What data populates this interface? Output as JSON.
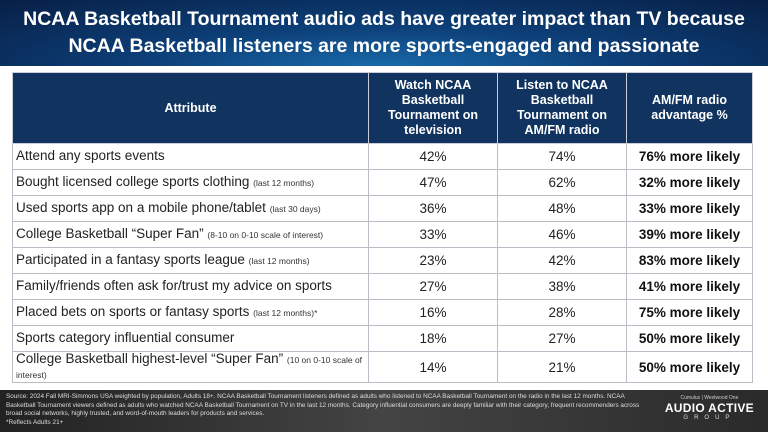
{
  "title": {
    "line1": "NCAA Basketball Tournament audio ads have greater impact than TV because",
    "line2": "NCAA Basketball listeners are more sports-engaged and passionate"
  },
  "table": {
    "headers": [
      "Attribute",
      "Watch NCAA Basketball Tournament on television",
      "Listen to NCAA Basketball Tournament on AM/FM radio",
      "AM/FM radio advantage %"
    ],
    "rows": [
      {
        "attribute": "Attend any sports events",
        "note": "",
        "tv": "42%",
        "radio": "74%",
        "advantage": "76% more likely"
      },
      {
        "attribute": "Bought licensed college sports clothing",
        "note": "(last 12 months)",
        "tv": "47%",
        "radio": "62%",
        "advantage": "32% more likely"
      },
      {
        "attribute": "Used sports app on a mobile phone/tablet",
        "note": "(last 30 days)",
        "tv": "36%",
        "radio": "48%",
        "advantage": "33% more likely"
      },
      {
        "attribute": "College Basketball “Super Fan”",
        "note": "(8-10 on 0-10 scale of interest)",
        "tv": "33%",
        "radio": "46%",
        "advantage": "39% more likely"
      },
      {
        "attribute": "Participated in a fantasy sports league",
        "note": "(last 12 months)",
        "tv": "23%",
        "radio": "42%",
        "advantage": "83% more likely"
      },
      {
        "attribute": "Family/friends often ask for/trust my advice on sports",
        "note": "",
        "tv": "27%",
        "radio": "38%",
        "advantage": "41% more likely"
      },
      {
        "attribute": "Placed bets on sports or fantasy sports",
        "note": "(last 12 months)*",
        "tv": "16%",
        "radio": "28%",
        "advantage": "75% more likely"
      },
      {
        "attribute": "Sports category influential consumer",
        "note": "",
        "tv": "18%",
        "radio": "27%",
        "advantage": "50% more likely"
      },
      {
        "attribute": "College Basketball highest-level “Super Fan”",
        "note": "(10 on 0-10 scale of interest)",
        "tv": "14%",
        "radio": "21%",
        "advantage": "50% more likely"
      }
    ]
  },
  "footer": {
    "source": "Source: 2024 Fall MRI-Simmons USA weighted by population, Adults 18+. NCAA Basketball Tournament listeners defined as adults who listened to NCAA Basketball Tournament on the radio in the last 12 months. NCAA Basketball Tournament viewers defined as adults who watched NCAA Basketball Tournament on TV in the last 12 months. Category influential consumers are deeply familiar with their category, frequent recommenders across broad social networks, highly trusted, and word-of-mouth leaders for products and services.",
    "footnote": "*Reflects Adults 21+",
    "logo_top": "Cumulus | Westwood One",
    "logo_main": "AUDIO ACTIVE",
    "logo_group": "GROUP"
  }
}
